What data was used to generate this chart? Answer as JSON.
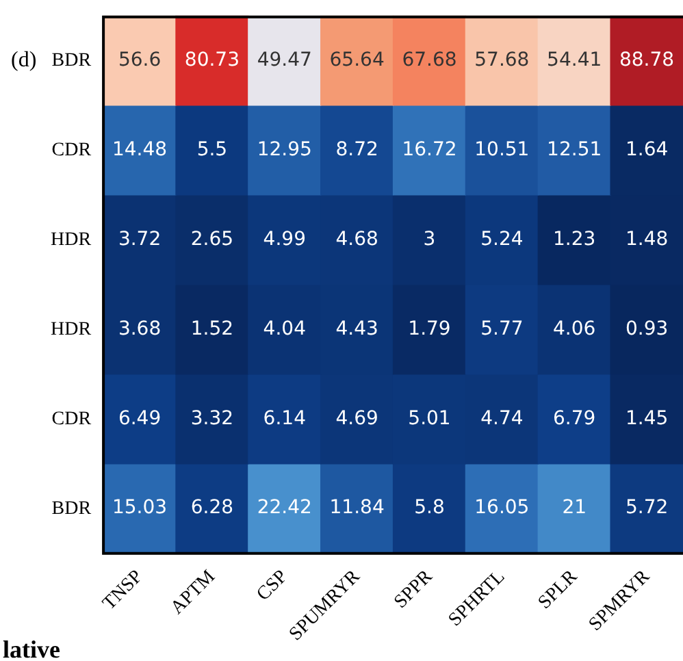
{
  "chart_data": {
    "type": "heatmap",
    "categories": [
      "TNSP",
      "APTM",
      "CSP",
      "SPUMRYR",
      "SPPR",
      "SPHRTL",
      "SPLR",
      "SPMRYR"
    ],
    "y_categories": [
      "BDR",
      "CDR",
      "HDR",
      "HDR",
      "CDR",
      "BDR"
    ],
    "cells": [
      [
        56.6,
        80.73,
        49.47,
        65.64,
        67.68,
        57.68,
        54.41,
        88.78
      ],
      [
        14.48,
        5.5,
        12.95,
        8.72,
        16.72,
        10.51,
        12.51,
        1.64
      ],
      [
        3.72,
        2.65,
        4.99,
        4.68,
        3,
        5.24,
        1.23,
        1.48
      ],
      [
        3.68,
        1.52,
        4.04,
        4.43,
        1.79,
        5.77,
        4.06,
        0.93
      ],
      [
        6.49,
        3.32,
        6.14,
        4.69,
        5.01,
        4.74,
        6.79,
        1.45
      ],
      [
        15.03,
        6.28,
        22.42,
        11.84,
        5.8,
        16.05,
        21,
        5.72
      ]
    ],
    "data_labels": true,
    "annotations": [
      "(d)",
      "lative"
    ]
  }
}
